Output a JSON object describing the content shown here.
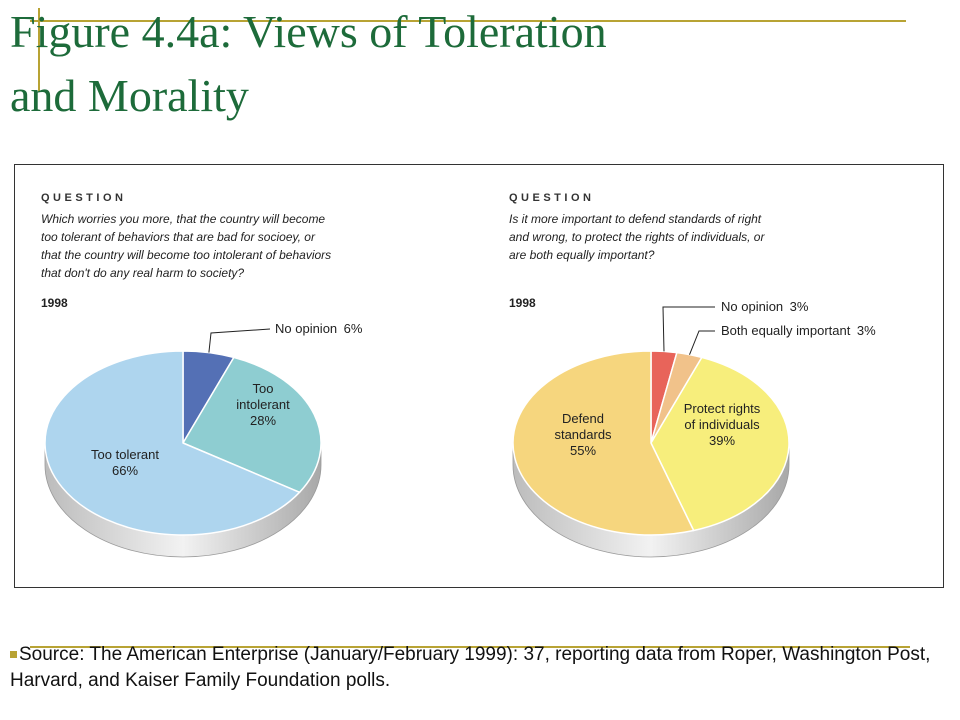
{
  "slide": {
    "title_line1": "Figure 4.4a: Views of Toleration",
    "title_line2": "and Morality",
    "source": "Source: The American Enterprise (January/February 1999): 37, reporting data from Roper, Washington Post, Harvard, and Kaiser Family Foundation polls."
  },
  "chart_data": [
    {
      "type": "pie",
      "heading": "QUESTION",
      "question_lines": [
        "Which worries you more, that the country will become",
        "too tolerant of behaviors that are bad for socioey, or",
        "that the country will become too intolerant of behaviors",
        "that don't do any real harm to society?"
      ],
      "year": "1998",
      "slices": [
        {
          "label_lines": [
            "No opinion",
            "6%"
          ],
          "value": 6,
          "color": "#5470b5",
          "callout": true
        },
        {
          "label_lines": [
            "Too",
            "intolerant",
            "28%"
          ],
          "value": 28,
          "color": "#8ecdd1",
          "callout": false
        },
        {
          "label_lines": [
            "Too tolerant",
            "66%"
          ],
          "value": 66,
          "color": "#aed5ee",
          "callout": false
        }
      ]
    },
    {
      "type": "pie",
      "heading": "QUESTION",
      "question_lines": [
        "Is it more important to defend standards of right",
        "and wrong, to protect the rights of individuals, or",
        "are both equally important?"
      ],
      "year": "1998",
      "slices": [
        {
          "label_lines": [
            "No opinion",
            "3%"
          ],
          "value": 3,
          "color": "#e8645a",
          "callout": true
        },
        {
          "label_lines": [
            "Both equally important",
            "3%"
          ],
          "value": 3,
          "color": "#f1c28a",
          "callout": true
        },
        {
          "label_lines": [
            "Protect rights",
            "of individuals",
            "39%"
          ],
          "value": 39,
          "color": "#f7ee7c",
          "callout": false
        },
        {
          "label_lines": [
            "Defend",
            "standards",
            "55%"
          ],
          "value": 55,
          "color": "#f6d67e",
          "callout": false
        }
      ]
    }
  ]
}
